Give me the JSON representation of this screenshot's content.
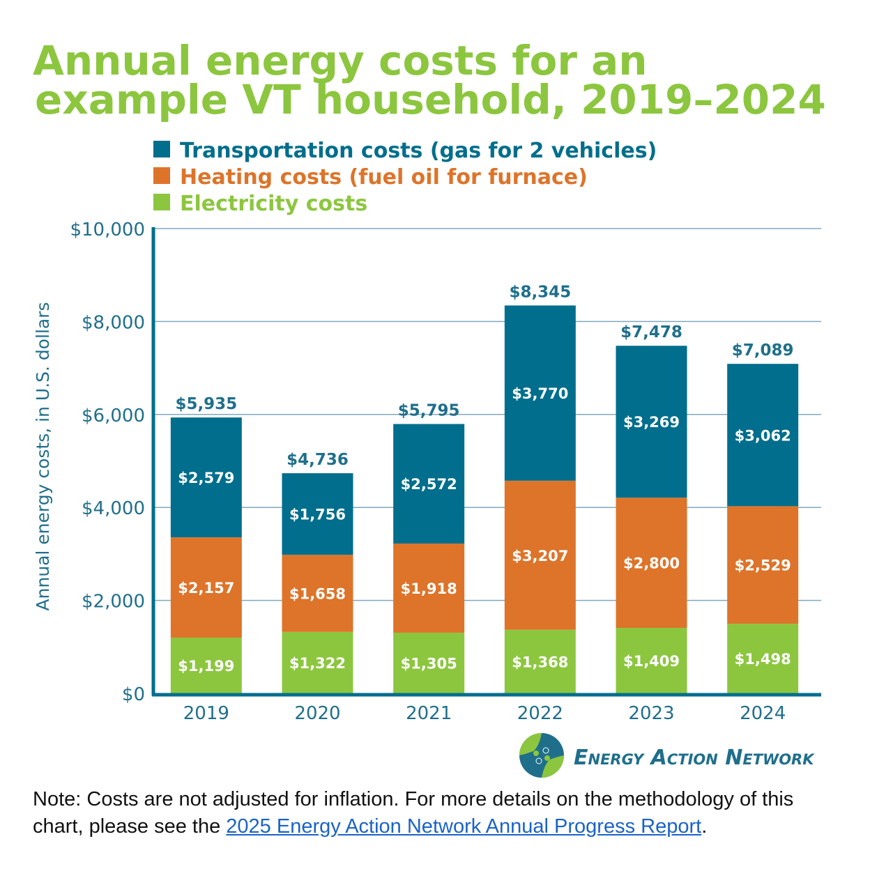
{
  "chart_data": {
    "type": "bar",
    "stacked": true,
    "title": [
      "Annual energy costs for an",
      "example VT household, 2019–2024"
    ],
    "ylabel": "Annual energy costs, in U.S. dollars",
    "xlabel": "",
    "ylim": [
      0,
      10000
    ],
    "yticks": [
      0,
      2000,
      4000,
      6000,
      8000,
      10000
    ],
    "ytick_labels": [
      "$0",
      "$2,000",
      "$4,000",
      "$6,000",
      "$8,000",
      "$10,000"
    ],
    "grid": true,
    "legend_position": "top-left",
    "categories": [
      "2019",
      "2020",
      "2021",
      "2022",
      "2023",
      "2024"
    ],
    "series": [
      {
        "name": "Electricity costs",
        "color": "#8cc63f",
        "values": [
          1199,
          1322,
          1305,
          1368,
          1409,
          1498
        ],
        "labels": [
          "$1,199",
          "$1,322",
          "$1,305",
          "$1,368",
          "$1,409",
          "$1,498"
        ]
      },
      {
        "name": "Heating costs (fuel oil for furnace)",
        "color": "#dd742a",
        "values": [
          2157,
          1658,
          1918,
          3207,
          2800,
          2529
        ],
        "labels": [
          "$2,157",
          "$1,658",
          "$1,918",
          "$3,207",
          "$2,800",
          "$2,529"
        ]
      },
      {
        "name": "Transportation costs (gas for 2 vehicles)",
        "color": "#006e8c",
        "values": [
          2579,
          1756,
          2572,
          3770,
          3269,
          3062
        ],
        "labels": [
          "$2,579",
          "$1,756",
          "$2,572",
          "$3,770",
          "$3,269",
          "$3,062"
        ]
      }
    ],
    "totals": [
      5935,
      4736,
      5795,
      8345,
      7478,
      7089
    ],
    "total_labels": [
      "$5,935",
      "$4,736",
      "$5,795",
      "$8,345",
      "$7,478",
      "$7,089"
    ]
  },
  "logo": {
    "text": "Energy Action Network"
  },
  "note": {
    "text_before": "Note: Costs are not adjusted for inflation. For more details on the methodology of this chart, please see the ",
    "link_text": "2025 Energy Action Network Annual Progress Report",
    "text_after": "."
  }
}
